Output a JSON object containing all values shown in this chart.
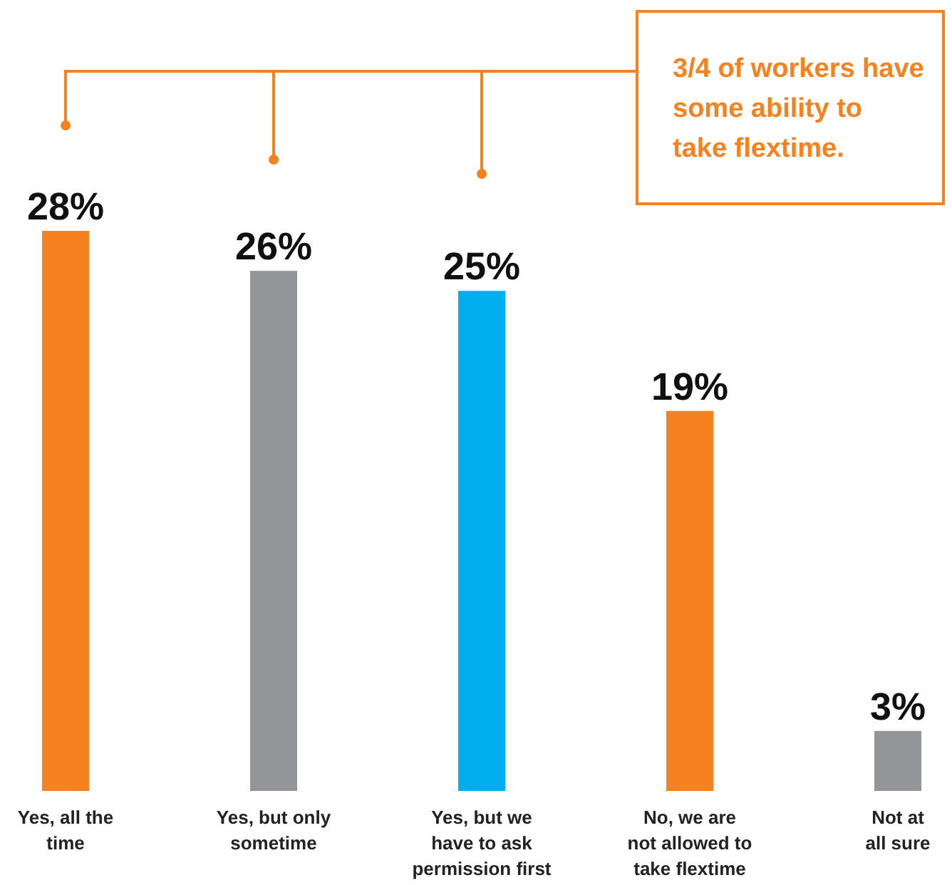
{
  "chart_data": {
    "type": "bar",
    "categories": [
      "Yes, all the\ntime",
      "Yes, but only\nsometime",
      "Yes, but we\nhave to ask\npermission first",
      "No, we are\nnot allowed to\ntake flextime",
      "Not at\nall sure"
    ],
    "values": [
      28,
      26,
      25,
      19,
      3
    ],
    "colors": [
      "#f5821f",
      "#939598",
      "#00aeef",
      "#f5821f",
      "#939598"
    ],
    "value_labels": [
      "28%",
      "26%",
      "25%",
      "19%",
      "3%"
    ],
    "annotations": [
      "3/4 of workers have some ability to take flextime."
    ]
  }
}
